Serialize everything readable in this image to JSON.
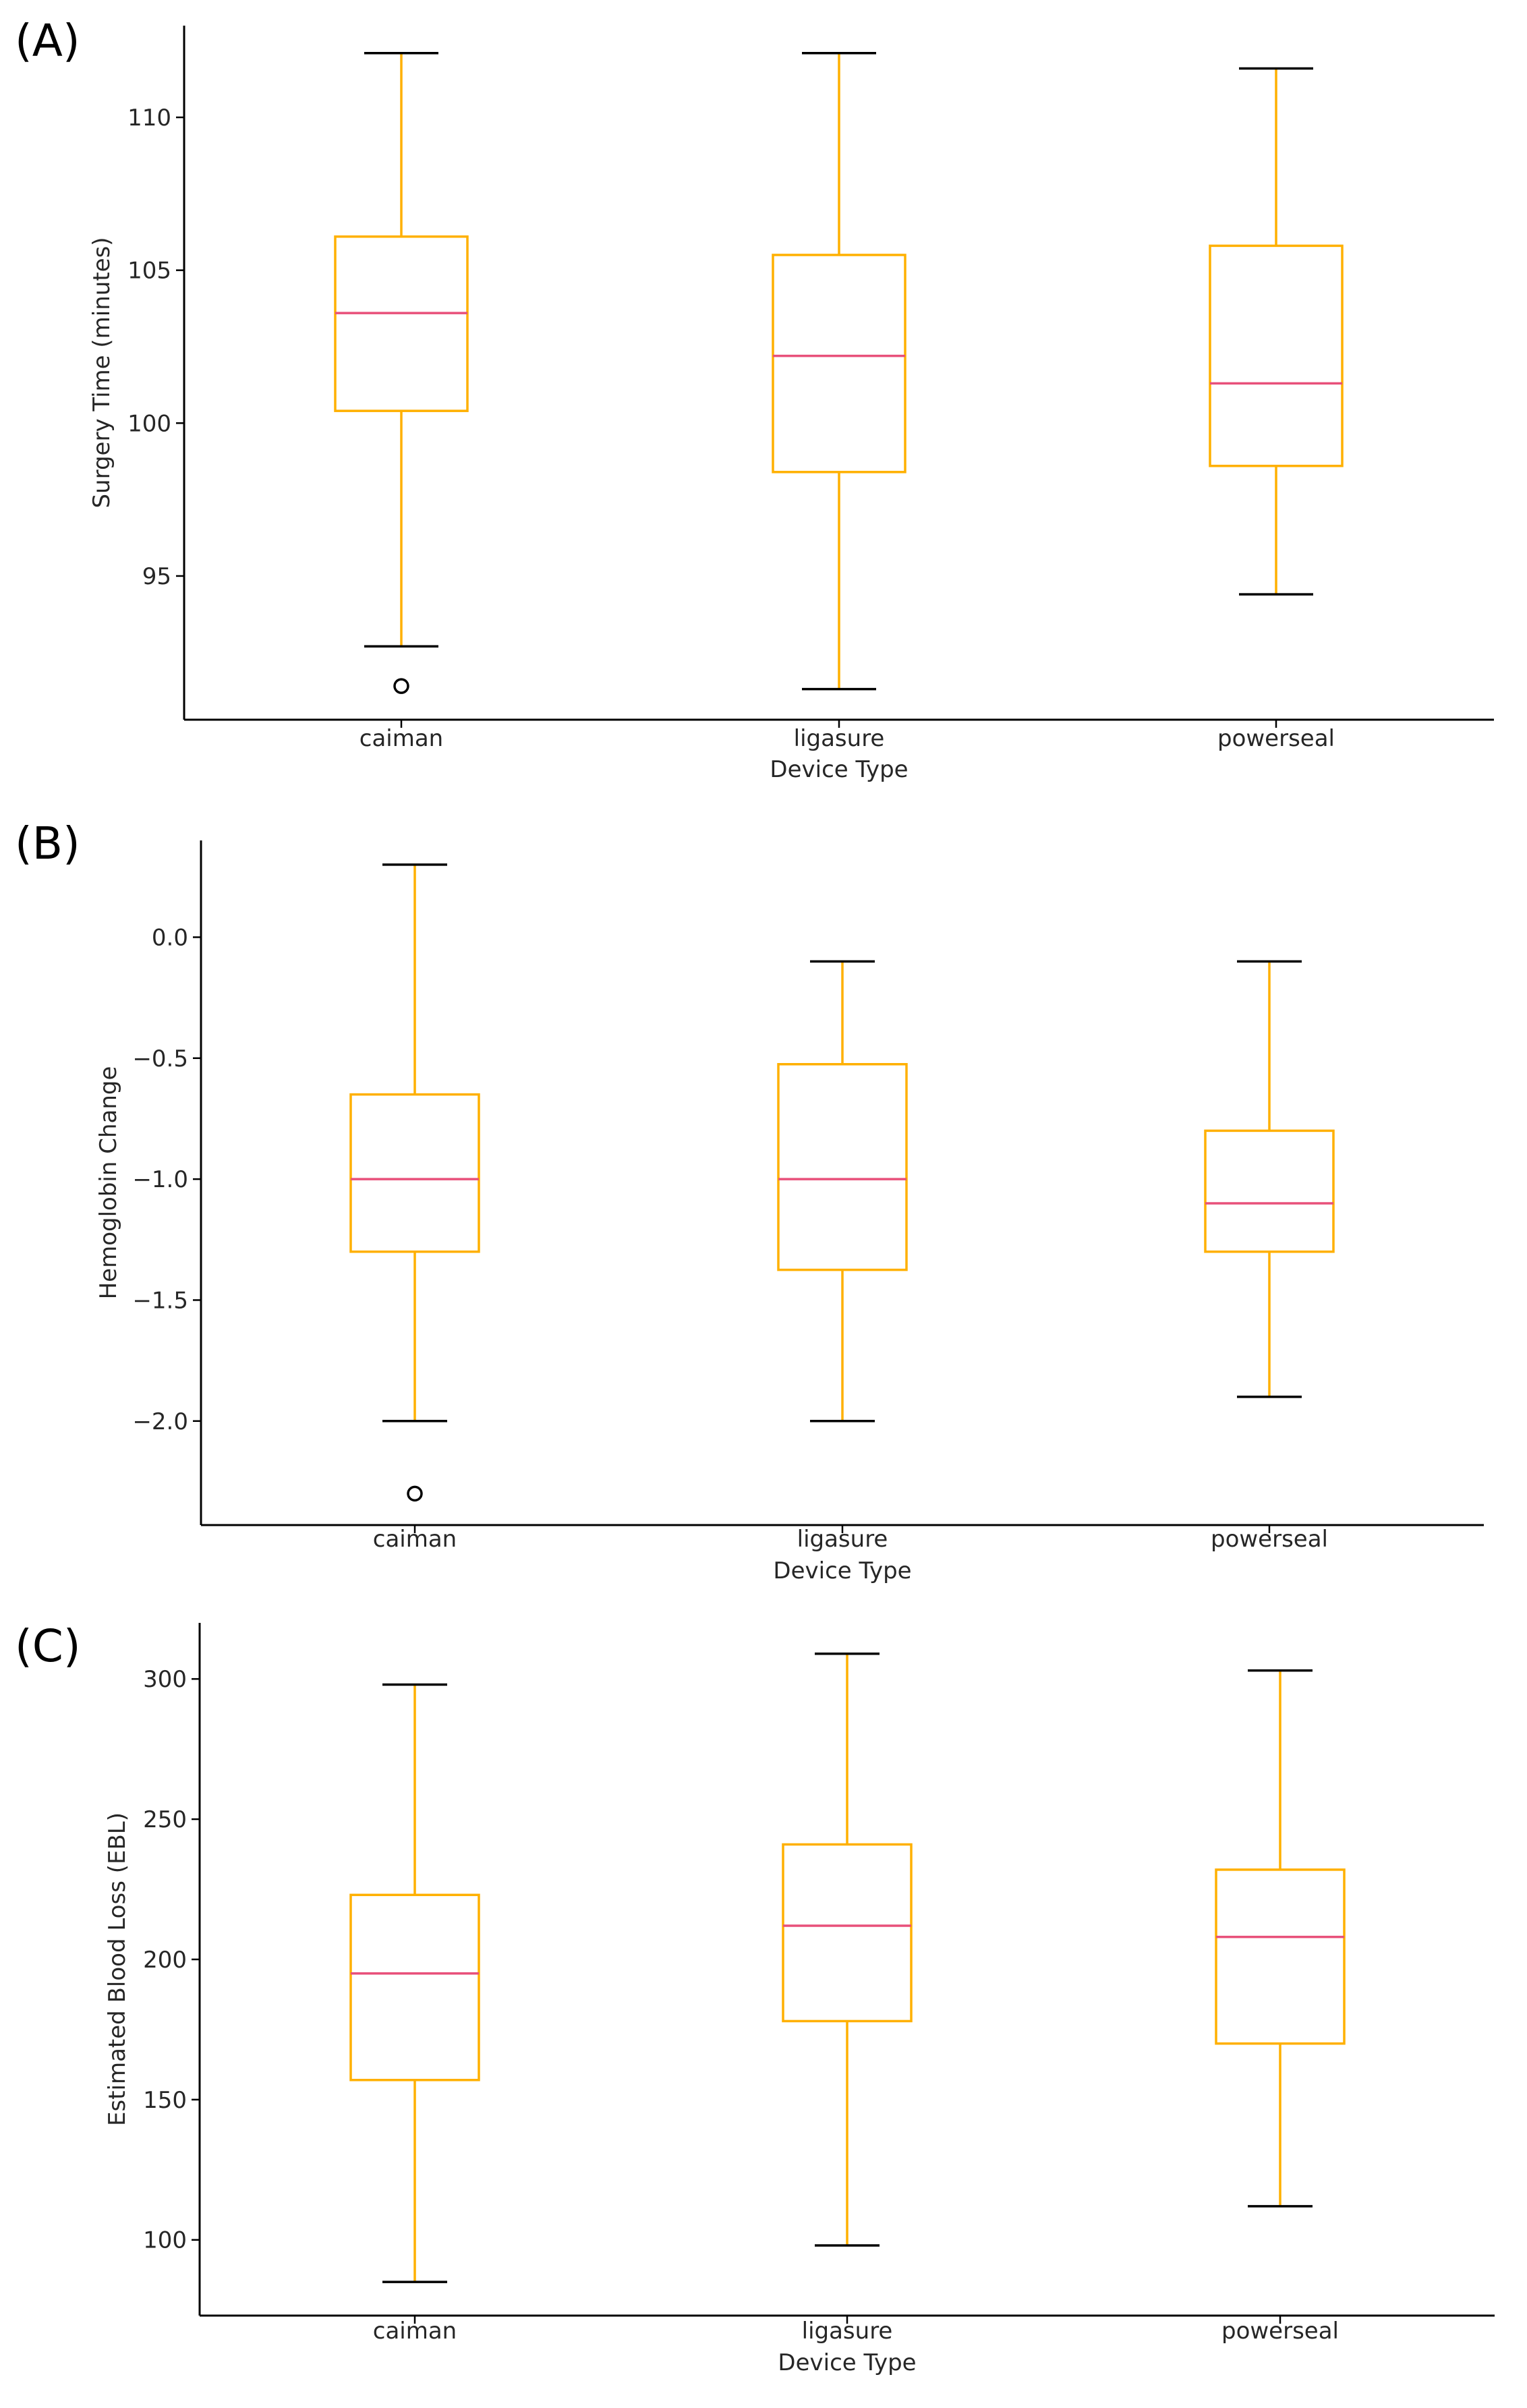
{
  "colors": {
    "box": "#FFB000",
    "whisker": "#FFB000",
    "median": "#E8507A",
    "cap": "#000000",
    "axis": "#000000",
    "flier": "#000000"
  },
  "chart_data": [
    {
      "panel_label": "(A)",
      "type": "boxplot",
      "categories": [
        "caiman",
        "ligasure",
        "powerseal"
      ],
      "xlabel": "Device Type",
      "ylabel": "Surgery Time (minutes)",
      "ylim": [
        90.3,
        113.0
      ],
      "yticks": [
        95,
        100,
        105,
        110
      ],
      "ytick_labels": [
        "95",
        "100",
        "105",
        "110"
      ],
      "boxes": [
        {
          "category": "caiman",
          "whislo": 92.7,
          "q1": 100.4,
          "med": 103.6,
          "q3": 106.1,
          "whishi": 112.1,
          "fliers": [
            91.4
          ]
        },
        {
          "category": "ligasure",
          "whislo": 91.3,
          "q1": 98.4,
          "med": 102.2,
          "q3": 105.5,
          "whishi": 112.1,
          "fliers": []
        },
        {
          "category": "powerseal",
          "whislo": 94.4,
          "q1": 98.6,
          "med": 101.3,
          "q3": 105.8,
          "whishi": 111.6,
          "fliers": []
        }
      ]
    },
    {
      "panel_label": "(B)",
      "type": "boxplot",
      "categories": [
        "caiman",
        "ligasure",
        "powerseal"
      ],
      "xlabel": "Device Type",
      "ylabel": "Hemoglobin Change",
      "ylim": [
        -2.43,
        0.4
      ],
      "yticks": [
        -2.0,
        -1.5,
        -1.0,
        -0.5,
        0.0
      ],
      "ytick_labels": [
        "−2.0",
        "−1.5",
        "−1.0",
        "−0.5",
        "0.0"
      ],
      "boxes": [
        {
          "category": "caiman",
          "whislo": -2.0,
          "q1": -1.3,
          "med": -1.0,
          "q3": -0.65,
          "whishi": 0.3,
          "fliers": [
            -2.3
          ]
        },
        {
          "category": "ligasure",
          "whislo": -2.0,
          "q1": -1.375,
          "med": -1.0,
          "q3": -0.525,
          "whishi": -0.1,
          "fliers": []
        },
        {
          "category": "powerseal",
          "whislo": -1.9,
          "q1": -1.3,
          "med": -1.1,
          "q3": -0.8,
          "whishi": -0.1,
          "fliers": []
        }
      ]
    },
    {
      "panel_label": "(C)",
      "type": "boxplot",
      "categories": [
        "caiman",
        "ligasure",
        "powerseal"
      ],
      "xlabel": "Device Type",
      "ylabel": "Estimated Blood Loss (EBL)",
      "ylim": [
        73.0,
        320.0
      ],
      "yticks": [
        100,
        150,
        200,
        250,
        300
      ],
      "ytick_labels": [
        "100",
        "150",
        "200",
        "250",
        "300"
      ],
      "boxes": [
        {
          "category": "caiman",
          "whislo": 85,
          "q1": 157,
          "med": 195,
          "q3": 223,
          "whishi": 298,
          "fliers": []
        },
        {
          "category": "ligasure",
          "whislo": 98,
          "q1": 178,
          "med": 212,
          "q3": 241,
          "whishi": 309,
          "fliers": []
        },
        {
          "category": "powerseal",
          "whislo": 112,
          "q1": 170,
          "med": 208,
          "q3": 232,
          "whishi": 303,
          "fliers": []
        }
      ]
    }
  ]
}
